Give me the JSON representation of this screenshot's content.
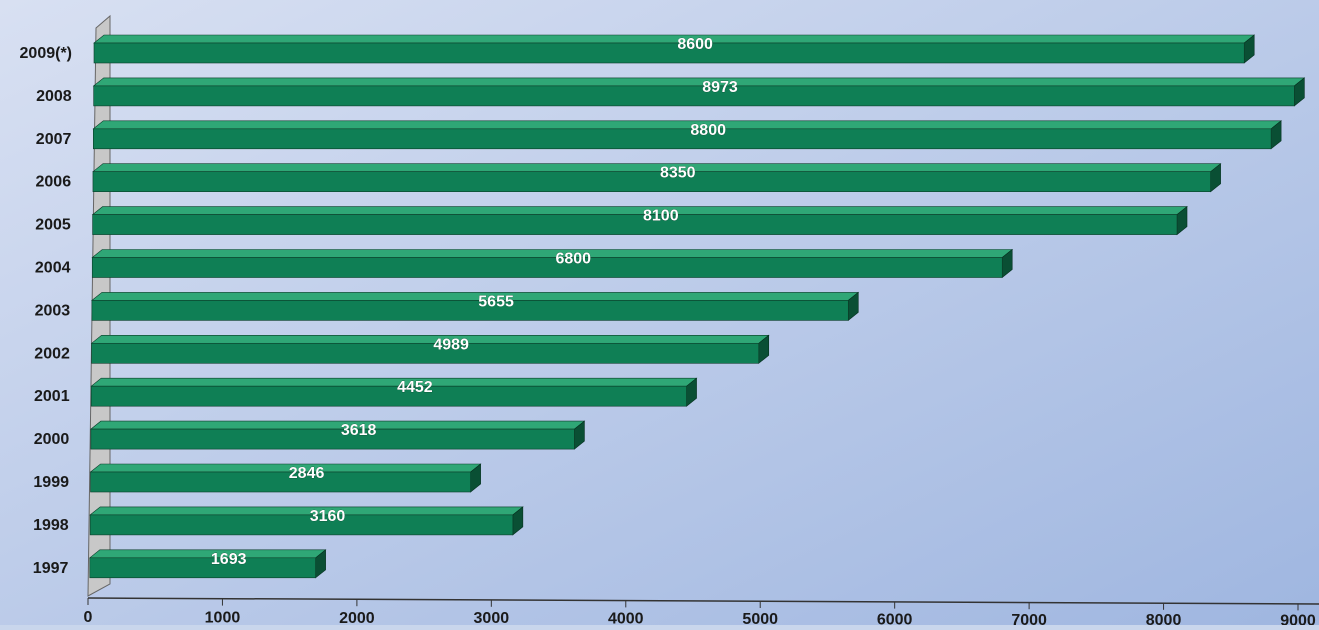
{
  "chart_data": {
    "type": "bar",
    "orientation": "horizontal",
    "categories": [
      "2009(*)",
      "2008",
      "2007",
      "2006",
      "2005",
      "2004",
      "2003",
      "2002",
      "2001",
      "2000",
      "1999",
      "1998",
      "1997"
    ],
    "values": [
      8600,
      8973,
      8800,
      8350,
      8100,
      6800,
      5655,
      4989,
      4452,
      3618,
      2846,
      3160,
      1693
    ],
    "data_labels": [
      "8600",
      "8973",
      "8800",
      "8350",
      "8100",
      "6800",
      "5655",
      "4989",
      "4452",
      "3618",
      "2846",
      "3160",
      "1693"
    ],
    "x_ticks": [
      0,
      1000,
      2000,
      3000,
      4000,
      5000,
      6000,
      7000,
      8000,
      9000
    ],
    "x_tick_labels": [
      "0",
      "1000",
      "2000",
      "3000",
      "4000",
      "5000",
      "6000",
      "7000",
      "8000",
      "9000"
    ],
    "xlim": [
      0,
      9000
    ],
    "title": "",
    "xlabel": "",
    "ylabel": "",
    "grid": false,
    "legend": "none",
    "style": "3d",
    "colors": {
      "bar_front": "#0f7f55",
      "bar_top": "#2fa776",
      "bar_side": "#0a4f34",
      "label_text": "#ffffff",
      "axis_text": "#1a1a1a",
      "background_top": "#d8e0f2",
      "background_bottom": "#9fb6e0",
      "wall": "#c8c8c8"
    }
  }
}
